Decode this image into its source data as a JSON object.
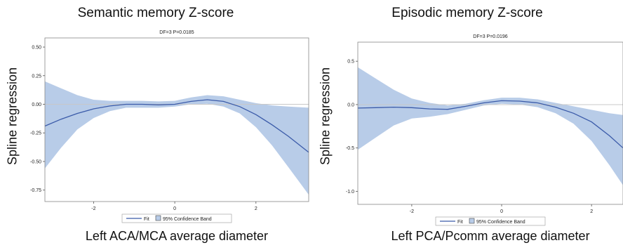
{
  "chart_data": [
    {
      "type": "line",
      "title": "Semantic memory Z-score",
      "subtitle": "DF=3  P=0.0185",
      "xlabel": "Left ACA/MCA average diameter",
      "ylabel": "Spline regression",
      "xlim": [
        -3.2,
        3.3
      ],
      "ylim": [
        -0.85,
        0.58
      ],
      "xticks": [
        "-2",
        "0",
        "2"
      ],
      "xtick_values": [
        -2,
        0,
        2
      ],
      "yticks": [
        "0.50",
        "0.25",
        "0.00",
        "-0.25",
        "-0.50",
        "-0.75"
      ],
      "ytick_values": [
        0.5,
        0.25,
        0.0,
        -0.25,
        -0.5,
        -0.75
      ],
      "reference_line": 0.0,
      "colors": {
        "fit": "#3b5ba9",
        "band": "#b8cce8",
        "reference": "#c8c8c8"
      },
      "series": [
        {
          "name": "Fit",
          "x": [
            -3.2,
            -2.8,
            -2.4,
            -2.0,
            -1.6,
            -1.2,
            -0.8,
            -0.4,
            0.0,
            0.4,
            0.8,
            1.2,
            1.6,
            2.0,
            2.4,
            2.8,
            3.3
          ],
          "y": [
            -0.19,
            -0.13,
            -0.08,
            -0.04,
            -0.015,
            0.0,
            0.0,
            -0.005,
            0.0,
            0.025,
            0.04,
            0.025,
            -0.02,
            -0.09,
            -0.18,
            -0.28,
            -0.42
          ]
        },
        {
          "name": "95% Confidence Band",
          "x": [
            -3.2,
            -2.8,
            -2.4,
            -2.0,
            -1.6,
            -1.2,
            -0.8,
            -0.4,
            0.0,
            0.4,
            0.8,
            1.2,
            1.6,
            2.0,
            2.4,
            2.8,
            3.3
          ],
          "upper": [
            0.2,
            0.14,
            0.08,
            0.04,
            0.03,
            0.03,
            0.03,
            0.025,
            0.03,
            0.06,
            0.08,
            0.07,
            0.04,
            0.01,
            -0.01,
            -0.02,
            -0.03
          ],
          "lower": [
            -0.56,
            -0.38,
            -0.22,
            -0.12,
            -0.06,
            -0.03,
            -0.03,
            -0.03,
            -0.02,
            0.0,
            0.005,
            -0.02,
            -0.08,
            -0.2,
            -0.36,
            -0.55,
            -0.79
          ]
        }
      ]
    },
    {
      "type": "line",
      "title": "Episodic memory Z-score",
      "subtitle": "DF=3  P=0.0196",
      "xlabel": "Left PCA/Pcomm average diameter",
      "ylabel": "Spline regression",
      "xlim": [
        -3.2,
        2.7
      ],
      "ylim": [
        -1.15,
        0.72
      ],
      "xticks": [
        "-2",
        "0",
        "2"
      ],
      "xtick_values": [
        -2,
        0,
        2
      ],
      "yticks": [
        "0.5",
        "0.0",
        "-0.5",
        "-1.0"
      ],
      "ytick_values": [
        0.5,
        0.0,
        -0.5,
        -1.0
      ],
      "reference_line": 0.0,
      "colors": {
        "fit": "#3b5ba9",
        "band": "#b8cce8",
        "reference": "#c8c8c8"
      },
      "series": [
        {
          "name": "Fit",
          "x": [
            -3.2,
            -2.8,
            -2.4,
            -2.0,
            -1.6,
            -1.2,
            -0.8,
            -0.4,
            0.0,
            0.4,
            0.8,
            1.2,
            1.6,
            2.0,
            2.4,
            2.7
          ],
          "y": [
            -0.04,
            -0.035,
            -0.03,
            -0.035,
            -0.05,
            -0.055,
            -0.02,
            0.02,
            0.045,
            0.04,
            0.02,
            -0.03,
            -0.1,
            -0.2,
            -0.36,
            -0.5
          ]
        },
        {
          "name": "95% Confidence Band",
          "x": [
            -3.2,
            -2.8,
            -2.4,
            -2.0,
            -1.6,
            -1.2,
            -0.8,
            -0.4,
            0.0,
            0.4,
            0.8,
            1.2,
            1.6,
            2.0,
            2.4,
            2.7
          ],
          "upper": [
            0.43,
            0.3,
            0.17,
            0.07,
            0.02,
            -0.01,
            0.01,
            0.05,
            0.08,
            0.08,
            0.06,
            0.02,
            -0.02,
            -0.06,
            -0.1,
            -0.12
          ],
          "lower": [
            -0.52,
            -0.38,
            -0.24,
            -0.16,
            -0.14,
            -0.11,
            -0.06,
            -0.01,
            0.01,
            0.0,
            -0.03,
            -0.1,
            -0.22,
            -0.42,
            -0.7,
            -0.93
          ]
        }
      ]
    }
  ],
  "legend": {
    "fit_label": "Fit",
    "band_label": "95% Confidence Band"
  }
}
